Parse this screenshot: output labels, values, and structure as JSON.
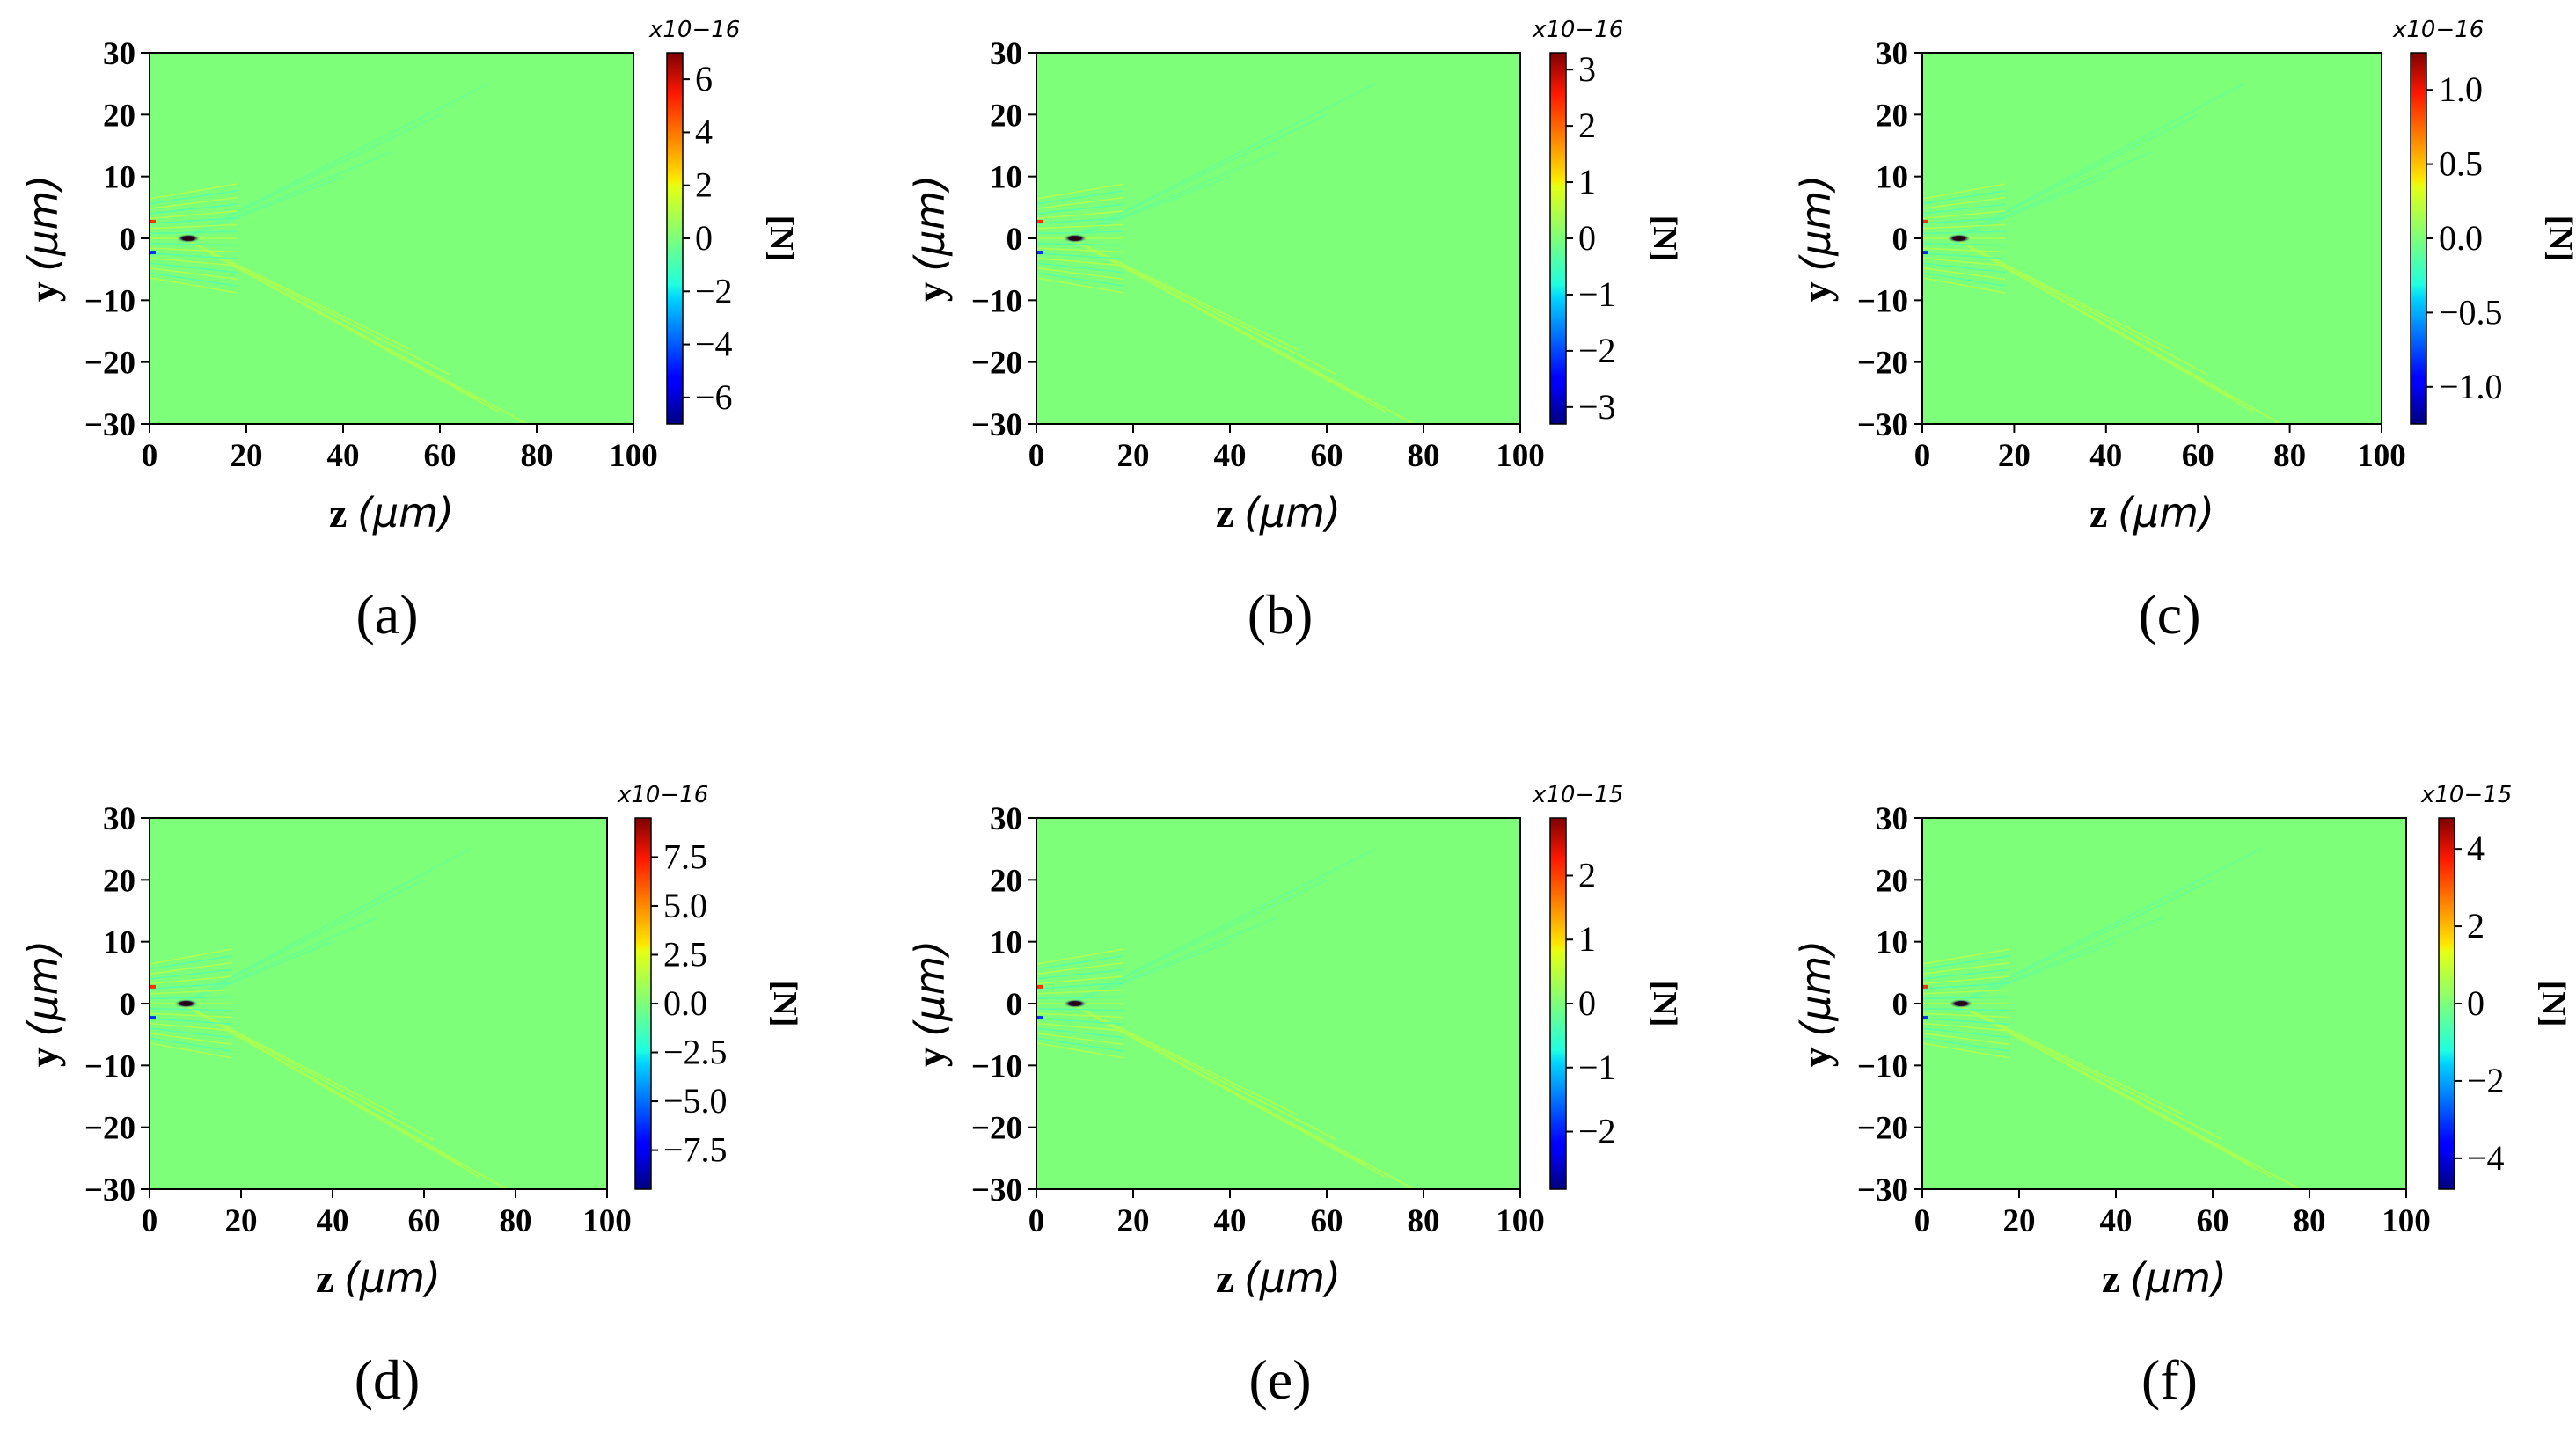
{
  "figure": {
    "panels": [
      {
        "id": "a",
        "caption": "(a)",
        "x_label": "z",
        "y_label": "y",
        "unit": "(μm)",
        "colorbar_unit": "[N]",
        "colorbar_exponent": "x10−16"
      },
      {
        "id": "b",
        "caption": "(b)",
        "x_label": "z",
        "y_label": "y",
        "unit": "(μm)",
        "colorbar_unit": "[N]",
        "colorbar_exponent": "x10−16"
      },
      {
        "id": "c",
        "caption": "(c)",
        "x_label": "z",
        "y_label": "y",
        "unit": "(μm)",
        "colorbar_unit": "[N]",
        "colorbar_exponent": "x10−16"
      },
      {
        "id": "d",
        "caption": "(d)",
        "x_label": "z",
        "y_label": "y",
        "unit": "(μm)",
        "colorbar_unit": "[N]",
        "colorbar_exponent": "x10−16"
      },
      {
        "id": "e",
        "caption": "(e)",
        "x_label": "z",
        "y_label": "y",
        "unit": "(μm)",
        "colorbar_unit": "[N]",
        "colorbar_exponent": "x10−15"
      },
      {
        "id": "f",
        "caption": "(f)",
        "x_label": "z",
        "y_label": "y",
        "unit": "(μm)",
        "colorbar_unit": "[N]",
        "colorbar_exponent": "x10−15"
      }
    ]
  },
  "chart_data": [
    {
      "type": "heatmap",
      "panel": "a",
      "xlabel": "z (μm)",
      "ylabel": "y (μm)",
      "xlim": [
        0,
        100
      ],
      "ylim": [
        -30,
        30
      ],
      "xticks": [
        "0",
        "20",
        "40",
        "60",
        "80",
        "100"
      ],
      "yticks": [
        "30",
        "20",
        "10",
        "0",
        "−10",
        "−20",
        "−30"
      ],
      "colorbar": {
        "min": -7,
        "max": 7,
        "ticks": [
          "6",
          "4",
          "2",
          "0",
          "−2",
          "−4",
          "−6"
        ],
        "tick_values": [
          6,
          4,
          2,
          0,
          -2,
          -4,
          -6
        ],
        "exponent": "x10−16",
        "unit": "[N]"
      },
      "colormap": "jet",
      "background_value": 0
    },
    {
      "type": "heatmap",
      "panel": "b",
      "xlabel": "z (μm)",
      "ylabel": "y (μm)",
      "xlim": [
        0,
        100
      ],
      "ylim": [
        -30,
        30
      ],
      "xticks": [
        "0",
        "20",
        "40",
        "60",
        "80",
        "100"
      ],
      "yticks": [
        "30",
        "20",
        "10",
        "0",
        "−10",
        "−20",
        "−30"
      ],
      "colorbar": {
        "min": -3.3,
        "max": 3.3,
        "ticks": [
          "3",
          "2",
          "1",
          "0",
          "−1",
          "−2",
          "−3"
        ],
        "tick_values": [
          3,
          2,
          1,
          0,
          -1,
          -2,
          -3
        ],
        "exponent": "x10−16",
        "unit": "[N]"
      },
      "colormap": "jet",
      "background_value": 0
    },
    {
      "type": "heatmap",
      "panel": "c",
      "xlabel": "z (μm)",
      "ylabel": "y (μm)",
      "xlim": [
        0,
        100
      ],
      "ylim": [
        -30,
        30
      ],
      "xticks": [
        "0",
        "20",
        "40",
        "60",
        "80",
        "100"
      ],
      "yticks": [
        "30",
        "20",
        "10",
        "0",
        "−10",
        "−20",
        "−30"
      ],
      "colorbar": {
        "min": -1.25,
        "max": 1.25,
        "ticks": [
          "1.0",
          "0.5",
          "0.0",
          "−0.5",
          "−1.0"
        ],
        "tick_values": [
          1.0,
          0.5,
          0.0,
          -0.5,
          -1.0
        ],
        "exponent": "x10−16",
        "unit": "[N]"
      },
      "colormap": "jet",
      "background_value": 0
    },
    {
      "type": "heatmap",
      "panel": "d",
      "xlabel": "z (μm)",
      "ylabel": "y (μm)",
      "xlim": [
        0,
        100
      ],
      "ylim": [
        -30,
        30
      ],
      "xticks": [
        "0",
        "20",
        "40",
        "60",
        "80",
        "100"
      ],
      "yticks": [
        "30",
        "20",
        "10",
        "0",
        "−10",
        "−20",
        "−30"
      ],
      "colorbar": {
        "min": -9.5,
        "max": 9.5,
        "ticks": [
          "7.5",
          "5.0",
          "2.5",
          "0.0",
          "−2.5",
          "−5.0",
          "−7.5"
        ],
        "tick_values": [
          7.5,
          5.0,
          2.5,
          0.0,
          -2.5,
          -5.0,
          -7.5
        ],
        "exponent": "x10−16",
        "unit": "[N]"
      },
      "colormap": "jet",
      "background_value": 0
    },
    {
      "type": "heatmap",
      "panel": "e",
      "xlabel": "z (μm)",
      "ylabel": "y (μm)",
      "xlim": [
        0,
        100
      ],
      "ylim": [
        -30,
        30
      ],
      "xticks": [
        "0",
        "20",
        "40",
        "60",
        "80",
        "100"
      ],
      "yticks": [
        "30",
        "20",
        "10",
        "0",
        "−10",
        "−20",
        "−30"
      ],
      "colorbar": {
        "min": -2.9,
        "max": 2.9,
        "ticks": [
          "2",
          "1",
          "0",
          "−1",
          "−2"
        ],
        "tick_values": [
          2,
          1,
          0,
          -1,
          -2
        ],
        "exponent": "x10−15",
        "unit": "[N]"
      },
      "colormap": "jet",
      "background_value": 0
    },
    {
      "type": "heatmap",
      "panel": "f",
      "xlabel": "z (μm)",
      "ylabel": "y (μm)",
      "xlim": [
        0,
        100
      ],
      "ylim": [
        -30,
        30
      ],
      "xticks": [
        "0",
        "20",
        "40",
        "60",
        "80",
        "100"
      ],
      "yticks": [
        "30",
        "20",
        "10",
        "0",
        "−10",
        "−20",
        "−30"
      ],
      "colorbar": {
        "min": -4.8,
        "max": 4.8,
        "ticks": [
          "4",
          "2",
          "0",
          "−2",
          "−4"
        ],
        "tick_values": [
          4,
          2,
          0,
          -2,
          -4
        ],
        "exponent": "x10−15",
        "unit": "[N]"
      },
      "colormap": "jet",
      "background_value": 0
    }
  ]
}
